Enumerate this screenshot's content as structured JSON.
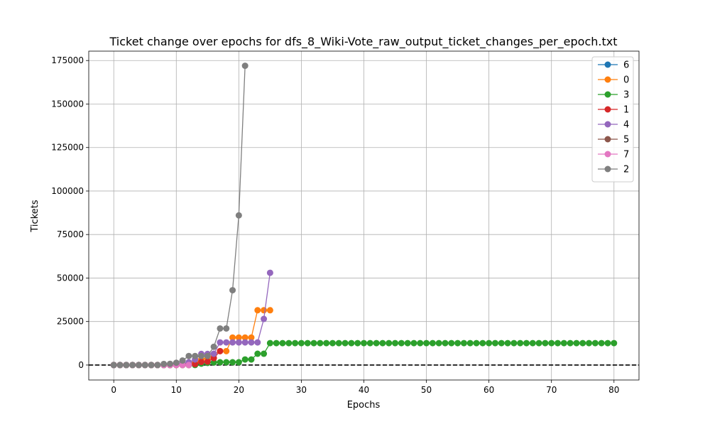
{
  "chart_data": {
    "type": "line",
    "title": "Ticket change over epochs for dfs_8_Wiki-Vote_raw_output_ticket_changes_per_epoch.txt",
    "xlabel": "Epochs",
    "ylabel": "Tickets",
    "xlim": [
      -4,
      84
    ],
    "ylim": [
      -8600,
      180400
    ],
    "xticks": [
      0,
      10,
      20,
      30,
      40,
      50,
      60,
      70,
      80
    ],
    "yticks": [
      0,
      25000,
      50000,
      75000,
      100000,
      125000,
      150000,
      175000
    ],
    "grid": true,
    "legend_position": "top-right",
    "reference_line": {
      "y": 0,
      "style": "dashed",
      "color": "#000000"
    },
    "series": [
      {
        "name": "6",
        "color": "#1f77b4",
        "points": [
          [
            0,
            0
          ],
          [
            1,
            0
          ],
          [
            2,
            0
          ],
          [
            3,
            0
          ],
          [
            4,
            0
          ],
          [
            5,
            0
          ],
          [
            6,
            0
          ],
          [
            7,
            0
          ],
          [
            8,
            0
          ]
        ]
      },
      {
        "name": "0",
        "color": "#ff7f0e",
        "points": [
          [
            0,
            0
          ],
          [
            1,
            0
          ],
          [
            2,
            0
          ],
          [
            3,
            0
          ],
          [
            4,
            0
          ],
          [
            5,
            0
          ],
          [
            6,
            0
          ],
          [
            7,
            0
          ],
          [
            8,
            0
          ],
          [
            9,
            0
          ],
          [
            10,
            200
          ],
          [
            11,
            400
          ],
          [
            12,
            800
          ],
          [
            13,
            1600
          ],
          [
            14,
            3200
          ],
          [
            15,
            4000
          ],
          [
            16,
            6000
          ],
          [
            17,
            8000
          ],
          [
            18,
            8000
          ],
          [
            19,
            15800
          ],
          [
            20,
            15800
          ],
          [
            21,
            15800
          ],
          [
            22,
            15800
          ],
          [
            23,
            31500
          ],
          [
            24,
            31500
          ],
          [
            25,
            31500
          ]
        ]
      },
      {
        "name": "3",
        "color": "#2ca02c",
        "points": [
          [
            0,
            0
          ],
          [
            1,
            0
          ],
          [
            2,
            0
          ],
          [
            3,
            0
          ],
          [
            4,
            0
          ],
          [
            5,
            0
          ],
          [
            6,
            0
          ],
          [
            7,
            0
          ],
          [
            8,
            0
          ],
          [
            9,
            0
          ],
          [
            10,
            0
          ],
          [
            11,
            0
          ],
          [
            12,
            0
          ],
          [
            13,
            0
          ],
          [
            14,
            800
          ],
          [
            15,
            1200
          ],
          [
            16,
            1500
          ],
          [
            17,
            1600
          ],
          [
            18,
            1600
          ],
          [
            19,
            1600
          ],
          [
            20,
            1600
          ],
          [
            21,
            3200
          ],
          [
            22,
            3200
          ],
          [
            23,
            6500
          ],
          [
            24,
            6500
          ],
          [
            25,
            12600
          ],
          [
            26,
            12600
          ],
          [
            27,
            12600
          ],
          [
            28,
            12600
          ],
          [
            29,
            12600
          ],
          [
            30,
            12600
          ],
          [
            31,
            12600
          ],
          [
            32,
            12600
          ],
          [
            33,
            12600
          ],
          [
            34,
            12600
          ],
          [
            35,
            12600
          ],
          [
            36,
            12600
          ],
          [
            37,
            12600
          ],
          [
            38,
            12600
          ],
          [
            39,
            12600
          ],
          [
            40,
            12600
          ],
          [
            41,
            12600
          ],
          [
            42,
            12600
          ],
          [
            43,
            12600
          ],
          [
            44,
            12600
          ],
          [
            45,
            12600
          ],
          [
            46,
            12600
          ],
          [
            47,
            12600
          ],
          [
            48,
            12600
          ],
          [
            49,
            12600
          ],
          [
            50,
            12600
          ],
          [
            51,
            12600
          ],
          [
            52,
            12600
          ],
          [
            53,
            12600
          ],
          [
            54,
            12600
          ],
          [
            55,
            12600
          ],
          [
            56,
            12600
          ],
          [
            57,
            12600
          ],
          [
            58,
            12600
          ],
          [
            59,
            12600
          ],
          [
            60,
            12600
          ],
          [
            61,
            12600
          ],
          [
            62,
            12600
          ],
          [
            63,
            12600
          ],
          [
            64,
            12600
          ],
          [
            65,
            12600
          ],
          [
            66,
            12600
          ],
          [
            67,
            12600
          ],
          [
            68,
            12600
          ],
          [
            69,
            12600
          ],
          [
            70,
            12600
          ],
          [
            71,
            12600
          ],
          [
            72,
            12600
          ],
          [
            73,
            12600
          ],
          [
            74,
            12600
          ],
          [
            75,
            12600
          ],
          [
            76,
            12600
          ],
          [
            77,
            12600
          ],
          [
            78,
            12600
          ],
          [
            79,
            12600
          ],
          [
            80,
            12600
          ]
        ]
      },
      {
        "name": "1",
        "color": "#d62728",
        "points": [
          [
            0,
            0
          ],
          [
            1,
            0
          ],
          [
            2,
            0
          ],
          [
            3,
            0
          ],
          [
            4,
            0
          ],
          [
            5,
            0
          ],
          [
            6,
            0
          ],
          [
            7,
            0
          ],
          [
            8,
            0
          ],
          [
            9,
            0
          ],
          [
            10,
            0
          ],
          [
            11,
            0
          ],
          [
            12,
            0
          ],
          [
            13,
            500
          ],
          [
            14,
            1800
          ],
          [
            15,
            2000
          ],
          [
            16,
            4000
          ],
          [
            17,
            8000
          ]
        ]
      },
      {
        "name": "4",
        "color": "#9467bd",
        "points": [
          [
            0,
            0
          ],
          [
            1,
            0
          ],
          [
            2,
            0
          ],
          [
            3,
            0
          ],
          [
            4,
            0
          ],
          [
            5,
            0
          ],
          [
            6,
            0
          ],
          [
            7,
            0
          ],
          [
            8,
            0
          ],
          [
            9,
            0
          ],
          [
            10,
            500
          ],
          [
            11,
            800
          ],
          [
            12,
            1600
          ],
          [
            13,
            3200
          ],
          [
            14,
            6400
          ],
          [
            15,
            6400
          ],
          [
            16,
            6500
          ],
          [
            17,
            13000
          ],
          [
            18,
            13000
          ],
          [
            19,
            13000
          ],
          [
            20,
            13000
          ],
          [
            21,
            13000
          ],
          [
            22,
            13000
          ],
          [
            23,
            13000
          ],
          [
            24,
            26500
          ],
          [
            25,
            53000
          ]
        ]
      },
      {
        "name": "5",
        "color": "#8c564b",
        "points": [
          [
            0,
            0
          ],
          [
            1,
            0
          ],
          [
            2,
            0
          ],
          [
            3,
            0
          ],
          [
            4,
            0
          ],
          [
            5,
            0
          ],
          [
            6,
            0
          ],
          [
            7,
            0
          ],
          [
            8,
            0
          ],
          [
            9,
            0
          ]
        ]
      },
      {
        "name": "7",
        "color": "#e377c2",
        "points": [
          [
            0,
            0
          ],
          [
            1,
            0
          ],
          [
            2,
            0
          ],
          [
            3,
            0
          ],
          [
            4,
            0
          ],
          [
            5,
            0
          ],
          [
            6,
            0
          ],
          [
            7,
            0
          ],
          [
            8,
            0
          ],
          [
            9,
            0
          ],
          [
            10,
            0
          ],
          [
            11,
            0
          ],
          [
            12,
            0
          ]
        ]
      },
      {
        "name": "2",
        "color": "#7f7f7f",
        "points": [
          [
            0,
            0
          ],
          [
            1,
            0
          ],
          [
            2,
            0
          ],
          [
            3,
            0
          ],
          [
            4,
            0
          ],
          [
            5,
            0
          ],
          [
            6,
            0
          ],
          [
            7,
            0
          ],
          [
            8,
            600
          ],
          [
            9,
            700
          ],
          [
            10,
            1300
          ],
          [
            11,
            2600
          ],
          [
            12,
            5200
          ],
          [
            13,
            5200
          ],
          [
            14,
            5200
          ],
          [
            15,
            5200
          ],
          [
            16,
            10500
          ],
          [
            17,
            21000
          ],
          [
            18,
            21000
          ],
          [
            19,
            43000
          ],
          [
            20,
            86000
          ],
          [
            21,
            172000
          ]
        ]
      }
    ]
  }
}
